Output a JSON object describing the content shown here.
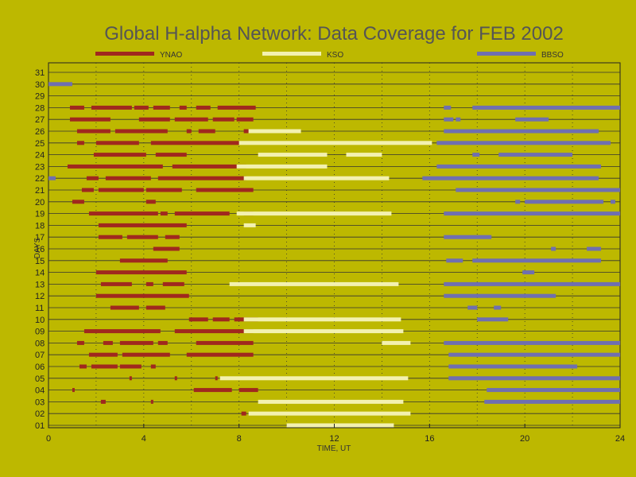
{
  "chart_data": {
    "type": "bar",
    "title": "Global H-alpha Network: Data Coverage for FEB 2002",
    "xlabel": "TIME, UT",
    "ylabel": "DAYS",
    "xlim": [
      0,
      24
    ],
    "ylim": [
      1,
      31
    ],
    "xticks": [
      "0",
      "4",
      "8",
      "12",
      "16",
      "20",
      "24"
    ],
    "yticks": [
      "01",
      "02",
      "03",
      "04",
      "05",
      "06",
      "07",
      "08",
      "09",
      "10",
      "11",
      "12",
      "13",
      "14",
      "15",
      "16",
      "17",
      "18",
      "19",
      "20",
      "21",
      "22",
      "23",
      "24",
      "25",
      "26",
      "27",
      "28",
      "29",
      "30",
      "31"
    ],
    "legend_placement": "top",
    "grid": "major lines solid, minor lines dotted",
    "series": [
      {
        "name": "YNAO",
        "color": "#a0281e",
        "intervals": [
          {
            "day": 28,
            "start": 0.9,
            "end": 1.5
          },
          {
            "day": 28,
            "start": 1.8,
            "end": 3.5
          },
          {
            "day": 28,
            "start": 3.6,
            "end": 4.2
          },
          {
            "day": 28,
            "start": 4.4,
            "end": 5.1
          },
          {
            "day": 28,
            "start": 5.5,
            "end": 5.8
          },
          {
            "day": 28,
            "start": 6.2,
            "end": 6.8
          },
          {
            "day": 28,
            "start": 7.1,
            "end": 8.7
          },
          {
            "day": 27,
            "start": 0.9,
            "end": 2.6
          },
          {
            "day": 27,
            "start": 3.8,
            "end": 5.1
          },
          {
            "day": 27,
            "start": 5.3,
            "end": 6.7
          },
          {
            "day": 27,
            "start": 6.9,
            "end": 7.8
          },
          {
            "day": 27,
            "start": 7.9,
            "end": 8.6
          },
          {
            "day": 26,
            "start": 1.2,
            "end": 2.6
          },
          {
            "day": 26,
            "start": 2.8,
            "end": 5.0
          },
          {
            "day": 26,
            "start": 5.8,
            "end": 6.0
          },
          {
            "day": 26,
            "start": 6.3,
            "end": 7.0
          },
          {
            "day": 26,
            "start": 8.2,
            "end": 8.4
          },
          {
            "day": 25,
            "start": 1.2,
            "end": 1.5
          },
          {
            "day": 25,
            "start": 2.0,
            "end": 3.8
          },
          {
            "day": 25,
            "start": 4.3,
            "end": 8.0
          },
          {
            "day": 24,
            "start": 1.9,
            "end": 4.1
          },
          {
            "day": 24,
            "start": 4.5,
            "end": 5.8
          },
          {
            "day": 23,
            "start": 0.8,
            "end": 4.8
          },
          {
            "day": 23,
            "start": 5.2,
            "end": 8.3
          },
          {
            "day": 22,
            "start": 1.6,
            "end": 2.1
          },
          {
            "day": 22,
            "start": 2.4,
            "end": 4.3
          },
          {
            "day": 22,
            "start": 4.6,
            "end": 8.3
          },
          {
            "day": 21,
            "start": 1.4,
            "end": 1.9
          },
          {
            "day": 21,
            "start": 2.1,
            "end": 4.0
          },
          {
            "day": 21,
            "start": 4.1,
            "end": 5.6
          },
          {
            "day": 21,
            "start": 6.2,
            "end": 8.6
          },
          {
            "day": 20,
            "start": 1.0,
            "end": 1.5
          },
          {
            "day": 20,
            "start": 4.1,
            "end": 4.5
          },
          {
            "day": 19,
            "start": 1.7,
            "end": 4.6
          },
          {
            "day": 19,
            "start": 4.7,
            "end": 5.0
          },
          {
            "day": 19,
            "start": 5.3,
            "end": 7.6
          },
          {
            "day": 19,
            "start": 8.2,
            "end": 8.6
          },
          {
            "day": 18,
            "start": 2.1,
            "end": 5.8
          },
          {
            "day": 17,
            "start": 2.1,
            "end": 3.1
          },
          {
            "day": 17,
            "start": 3.3,
            "end": 4.6
          },
          {
            "day": 17,
            "start": 4.9,
            "end": 5.5
          },
          {
            "day": 16,
            "start": 4.4,
            "end": 5.5
          },
          {
            "day": 15,
            "start": 3.0,
            "end": 5.0
          },
          {
            "day": 14,
            "start": 2.0,
            "end": 5.8
          },
          {
            "day": 13,
            "start": 2.2,
            "end": 3.5
          },
          {
            "day": 13,
            "start": 4.1,
            "end": 4.4
          },
          {
            "day": 13,
            "start": 4.8,
            "end": 5.7
          },
          {
            "day": 12,
            "start": 2.0,
            "end": 5.9
          },
          {
            "day": 11,
            "start": 2.6,
            "end": 3.8
          },
          {
            "day": 11,
            "start": 4.1,
            "end": 4.9
          },
          {
            "day": 10,
            "start": 5.9,
            "end": 6.7
          },
          {
            "day": 10,
            "start": 6.9,
            "end": 7.6
          },
          {
            "day": 10,
            "start": 7.8,
            "end": 8.8
          },
          {
            "day": 9,
            "start": 1.5,
            "end": 4.7
          },
          {
            "day": 9,
            "start": 5.3,
            "end": 8.6
          },
          {
            "day": 8,
            "start": 1.2,
            "end": 1.5
          },
          {
            "day": 8,
            "start": 2.3,
            "end": 2.7
          },
          {
            "day": 8,
            "start": 3.0,
            "end": 4.4
          },
          {
            "day": 8,
            "start": 4.6,
            "end": 5.0
          },
          {
            "day": 8,
            "start": 6.2,
            "end": 8.6
          },
          {
            "day": 7,
            "start": 1.7,
            "end": 2.9
          },
          {
            "day": 7,
            "start": 3.1,
            "end": 5.1
          },
          {
            "day": 7,
            "start": 5.8,
            "end": 8.6
          },
          {
            "day": 6,
            "start": 1.3,
            "end": 1.6
          },
          {
            "day": 6,
            "start": 1.8,
            "end": 2.9
          },
          {
            "day": 6,
            "start": 3.0,
            "end": 3.9
          },
          {
            "day": 6,
            "start": 4.3,
            "end": 4.5
          },
          {
            "day": 5,
            "start": 3.4,
            "end": 3.5
          },
          {
            "day": 5,
            "start": 5.3,
            "end": 5.4
          },
          {
            "day": 5,
            "start": 7.0,
            "end": 7.1
          },
          {
            "day": 4,
            "start": 1.0,
            "end": 1.1
          },
          {
            "day": 4,
            "start": 6.1,
            "end": 7.7
          },
          {
            "day": 4,
            "start": 8.0,
            "end": 8.8
          },
          {
            "day": 3,
            "start": 2.2,
            "end": 2.4
          },
          {
            "day": 3,
            "start": 4.3,
            "end": 4.4
          },
          {
            "day": 2,
            "start": 8.1,
            "end": 8.3
          }
        ]
      },
      {
        "name": "KSO",
        "color": "#f3f1b0",
        "intervals": [
          {
            "day": 26,
            "start": 8.4,
            "end": 10.6
          },
          {
            "day": 25,
            "start": 8.0,
            "end": 16.1
          },
          {
            "day": 24,
            "start": 8.8,
            "end": 11.7
          },
          {
            "day": 24,
            "start": 12.5,
            "end": 14.0
          },
          {
            "day": 23,
            "start": 7.9,
            "end": 11.7
          },
          {
            "day": 22,
            "start": 8.2,
            "end": 14.3
          },
          {
            "day": 19,
            "start": 7.9,
            "end": 14.4
          },
          {
            "day": 18,
            "start": 8.2,
            "end": 8.7
          },
          {
            "day": 13,
            "start": 7.6,
            "end": 14.7
          },
          {
            "day": 10,
            "start": 8.2,
            "end": 14.8
          },
          {
            "day": 9,
            "start": 8.2,
            "end": 14.9
          },
          {
            "day": 8,
            "start": 14.0,
            "end": 15.2
          },
          {
            "day": 5,
            "start": 7.2,
            "end": 15.1
          },
          {
            "day": 3,
            "start": 8.8,
            "end": 14.9
          },
          {
            "day": 2,
            "start": 8.4,
            "end": 15.2
          },
          {
            "day": 1,
            "start": 10.0,
            "end": 14.5
          }
        ]
      },
      {
        "name": "BBSO",
        "color": "#6f6fb0",
        "intervals": [
          {
            "day": 30,
            "start": 0.0,
            "end": 1.0
          },
          {
            "day": 28,
            "start": 16.6,
            "end": 16.9
          },
          {
            "day": 28,
            "start": 17.8,
            "end": 24.0
          },
          {
            "day": 27,
            "start": 16.6,
            "end": 17.0
          },
          {
            "day": 27,
            "start": 17.1,
            "end": 17.3
          },
          {
            "day": 27,
            "start": 19.6,
            "end": 21.0
          },
          {
            "day": 26,
            "start": 16.6,
            "end": 23.1
          },
          {
            "day": 25,
            "start": 16.3,
            "end": 23.6
          },
          {
            "day": 24,
            "start": 17.8,
            "end": 18.1
          },
          {
            "day": 24,
            "start": 18.9,
            "end": 22.0
          },
          {
            "day": 23,
            "start": 16.3,
            "end": 23.2
          },
          {
            "day": 22,
            "start": 15.7,
            "end": 23.1
          },
          {
            "day": 22,
            "start": 0.0,
            "end": 0.3
          },
          {
            "day": 21,
            "start": 17.1,
            "end": 24.0
          },
          {
            "day": 20,
            "start": 19.6,
            "end": 19.8
          },
          {
            "day": 20,
            "start": 20.0,
            "end": 23.3
          },
          {
            "day": 20,
            "start": 23.6,
            "end": 23.8
          },
          {
            "day": 19,
            "start": 16.6,
            "end": 24.0
          },
          {
            "day": 17,
            "start": 16.6,
            "end": 18.6
          },
          {
            "day": 16,
            "start": 21.1,
            "end": 21.3
          },
          {
            "day": 16,
            "start": 22.6,
            "end": 23.2
          },
          {
            "day": 15,
            "start": 16.7,
            "end": 17.4
          },
          {
            "day": 15,
            "start": 17.8,
            "end": 23.2
          },
          {
            "day": 14,
            "start": 19.9,
            "end": 20.4
          },
          {
            "day": 13,
            "start": 16.6,
            "end": 24.0
          },
          {
            "day": 12,
            "start": 16.6,
            "end": 21.3
          },
          {
            "day": 11,
            "start": 17.6,
            "end": 18.0
          },
          {
            "day": 11,
            "start": 18.7,
            "end": 19.0
          },
          {
            "day": 10,
            "start": 18.0,
            "end": 19.3
          },
          {
            "day": 8,
            "start": 16.6,
            "end": 24.0
          },
          {
            "day": 7,
            "start": 16.8,
            "end": 24.0
          },
          {
            "day": 6,
            "start": 16.8,
            "end": 22.2
          },
          {
            "day": 5,
            "start": 16.8,
            "end": 24.0
          },
          {
            "day": 4,
            "start": 18.4,
            "end": 24.0
          },
          {
            "day": 3,
            "start": 18.3,
            "end": 24.0
          }
        ]
      }
    ]
  }
}
